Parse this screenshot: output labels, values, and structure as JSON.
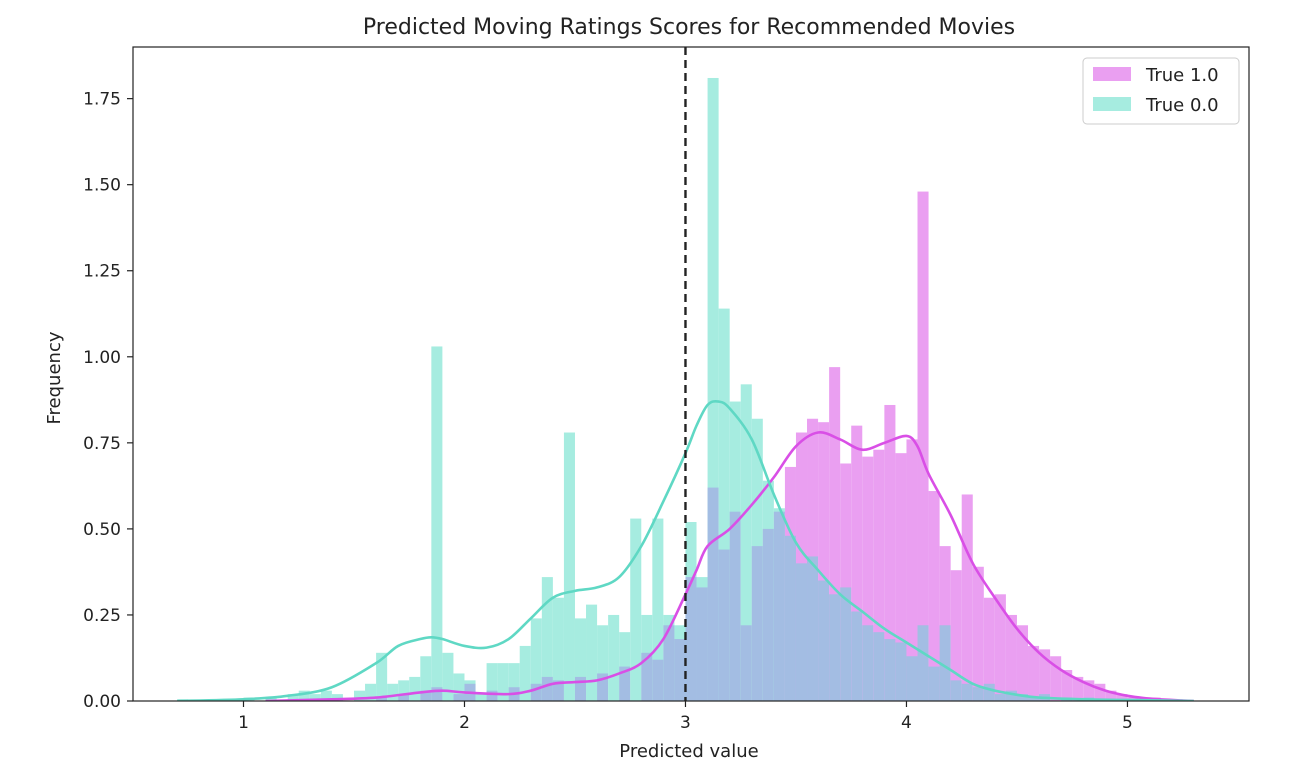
{
  "chart_data": {
    "type": "histogram",
    "title": "Predicted Moving Ratings Scores for Recommended Movies",
    "xlabel": "Predicted value",
    "ylabel": "Frequency",
    "xlim": [
      0.5,
      5.55
    ],
    "ylim": [
      0,
      1.9
    ],
    "xticks": [
      1,
      2,
      3,
      4,
      5
    ],
    "yticks": [
      0.0,
      0.25,
      0.5,
      0.75,
      1.0,
      1.25,
      1.5,
      1.75
    ],
    "ytick_labels": [
      "0.00",
      "0.25",
      "0.50",
      "0.75",
      "1.00",
      "1.25",
      "1.50",
      "1.75"
    ],
    "grid": false,
    "legend_position": "top-right",
    "vline": {
      "x": 3.0,
      "style": "dashed",
      "color": "#222222"
    },
    "bin_width": 0.05,
    "series": [
      {
        "name": "True 1.0",
        "color": "#ea9ff1",
        "kde_color": "#d94fe6",
        "bins": [
          [
            1.6,
            0.01
          ],
          [
            1.7,
            0.02
          ],
          [
            1.8,
            0.03
          ],
          [
            1.85,
            0.04
          ],
          [
            1.95,
            0.02
          ],
          [
            2.0,
            0.05
          ],
          [
            2.1,
            0.03
          ],
          [
            2.2,
            0.04
          ],
          [
            2.3,
            0.05
          ],
          [
            2.35,
            0.07
          ],
          [
            2.4,
            0.06
          ],
          [
            2.5,
            0.07
          ],
          [
            2.6,
            0.08
          ],
          [
            2.7,
            0.1
          ],
          [
            2.8,
            0.14
          ],
          [
            2.85,
            0.12
          ],
          [
            2.9,
            0.22
          ],
          [
            2.95,
            0.18
          ],
          [
            3.0,
            0.36
          ],
          [
            3.05,
            0.33
          ],
          [
            3.1,
            0.62
          ],
          [
            3.15,
            0.44
          ],
          [
            3.2,
            0.55
          ],
          [
            3.25,
            0.22
          ],
          [
            3.3,
            0.45
          ],
          [
            3.35,
            0.5
          ],
          [
            3.4,
            0.55
          ],
          [
            3.45,
            0.68
          ],
          [
            3.5,
            0.78
          ],
          [
            3.55,
            0.82
          ],
          [
            3.6,
            0.81
          ],
          [
            3.65,
            0.97
          ],
          [
            3.7,
            0.69
          ],
          [
            3.75,
            0.8
          ],
          [
            3.8,
            0.71
          ],
          [
            3.85,
            0.73
          ],
          [
            3.9,
            0.86
          ],
          [
            3.95,
            0.72
          ],
          [
            4.0,
            0.76
          ],
          [
            4.05,
            1.48
          ],
          [
            4.1,
            0.61
          ],
          [
            4.15,
            0.45
          ],
          [
            4.2,
            0.38
          ],
          [
            4.25,
            0.6
          ],
          [
            4.3,
            0.39
          ],
          [
            4.35,
            0.3
          ],
          [
            4.4,
            0.31
          ],
          [
            4.45,
            0.25
          ],
          [
            4.5,
            0.22
          ],
          [
            4.55,
            0.16
          ],
          [
            4.6,
            0.15
          ],
          [
            4.65,
            0.13
          ],
          [
            4.7,
            0.09
          ],
          [
            4.75,
            0.07
          ],
          [
            4.8,
            0.06
          ],
          [
            4.85,
            0.05
          ],
          [
            4.9,
            0.03
          ],
          [
            4.95,
            0.02
          ],
          [
            5.0,
            0.01
          ],
          [
            5.1,
            0.01
          ]
        ],
        "kde": [
          [
            1.1,
            0.0
          ],
          [
            1.4,
            0.005
          ],
          [
            1.6,
            0.01
          ],
          [
            1.8,
            0.025
          ],
          [
            1.9,
            0.03
          ],
          [
            2.0,
            0.025
          ],
          [
            2.2,
            0.02
          ],
          [
            2.3,
            0.03
          ],
          [
            2.4,
            0.05
          ],
          [
            2.5,
            0.055
          ],
          [
            2.6,
            0.06
          ],
          [
            2.7,
            0.08
          ],
          [
            2.8,
            0.11
          ],
          [
            2.9,
            0.18
          ],
          [
            3.0,
            0.31
          ],
          [
            3.05,
            0.38
          ],
          [
            3.1,
            0.45
          ],
          [
            3.2,
            0.5
          ],
          [
            3.3,
            0.57
          ],
          [
            3.4,
            0.65
          ],
          [
            3.5,
            0.74
          ],
          [
            3.6,
            0.78
          ],
          [
            3.7,
            0.76
          ],
          [
            3.8,
            0.73
          ],
          [
            3.9,
            0.75
          ],
          [
            4.0,
            0.77
          ],
          [
            4.05,
            0.74
          ],
          [
            4.1,
            0.66
          ],
          [
            4.2,
            0.54
          ],
          [
            4.3,
            0.4
          ],
          [
            4.4,
            0.3
          ],
          [
            4.5,
            0.21
          ],
          [
            4.6,
            0.14
          ],
          [
            4.7,
            0.09
          ],
          [
            4.8,
            0.055
          ],
          [
            4.9,
            0.03
          ],
          [
            5.0,
            0.015
          ],
          [
            5.1,
            0.007
          ],
          [
            5.2,
            0.003
          ],
          [
            5.3,
            0.0
          ]
        ]
      },
      {
        "name": "True 0.0",
        "color": "#a6ece0",
        "kde_color": "#5fd8c4",
        "bins": [
          [
            0.7,
            0.005
          ],
          [
            1.0,
            0.01
          ],
          [
            1.1,
            0.01
          ],
          [
            1.2,
            0.02
          ],
          [
            1.25,
            0.03
          ],
          [
            1.3,
            0.02
          ],
          [
            1.35,
            0.03
          ],
          [
            1.4,
            0.02
          ],
          [
            1.5,
            0.03
          ],
          [
            1.55,
            0.05
          ],
          [
            1.6,
            0.14
          ],
          [
            1.65,
            0.05
          ],
          [
            1.7,
            0.06
          ],
          [
            1.75,
            0.07
          ],
          [
            1.8,
            0.13
          ],
          [
            1.85,
            1.03
          ],
          [
            1.9,
            0.14
          ],
          [
            1.95,
            0.08
          ],
          [
            2.0,
            0.06
          ],
          [
            2.05,
            0.02
          ],
          [
            2.1,
            0.11
          ],
          [
            2.15,
            0.11
          ],
          [
            2.2,
            0.11
          ],
          [
            2.25,
            0.16
          ],
          [
            2.3,
            0.24
          ],
          [
            2.35,
            0.36
          ],
          [
            2.4,
            0.3
          ],
          [
            2.45,
            0.78
          ],
          [
            2.5,
            0.24
          ],
          [
            2.55,
            0.28
          ],
          [
            2.6,
            0.22
          ],
          [
            2.65,
            0.25
          ],
          [
            2.7,
            0.2
          ],
          [
            2.75,
            0.53
          ],
          [
            2.8,
            0.25
          ],
          [
            2.85,
            0.53
          ],
          [
            2.9,
            0.25
          ],
          [
            2.95,
            0.22
          ],
          [
            3.0,
            0.52
          ],
          [
            3.05,
            0.36
          ],
          [
            3.1,
            1.81
          ],
          [
            3.15,
            1.14
          ],
          [
            3.2,
            0.87
          ],
          [
            3.25,
            0.92
          ],
          [
            3.3,
            0.82
          ],
          [
            3.35,
            0.64
          ],
          [
            3.4,
            0.56
          ],
          [
            3.45,
            0.48
          ],
          [
            3.5,
            0.4
          ],
          [
            3.55,
            0.42
          ],
          [
            3.6,
            0.35
          ],
          [
            3.65,
            0.31
          ],
          [
            3.7,
            0.33
          ],
          [
            3.75,
            0.26
          ],
          [
            3.8,
            0.22
          ],
          [
            3.85,
            0.2
          ],
          [
            3.9,
            0.18
          ],
          [
            3.95,
            0.17
          ],
          [
            4.0,
            0.13
          ],
          [
            4.05,
            0.22
          ],
          [
            4.1,
            0.1
          ],
          [
            4.15,
            0.22
          ],
          [
            4.2,
            0.06
          ],
          [
            4.25,
            0.05
          ],
          [
            4.3,
            0.04
          ],
          [
            4.35,
            0.05
          ],
          [
            4.4,
            0.02
          ],
          [
            4.45,
            0.03
          ],
          [
            4.5,
            0.02
          ],
          [
            4.55,
            0.01
          ],
          [
            4.6,
            0.02
          ],
          [
            4.7,
            0.01
          ],
          [
            4.8,
            0.01
          ],
          [
            4.9,
            0.005
          ],
          [
            5.2,
            0.005
          ]
        ],
        "kde": [
          [
            0.7,
            0.0
          ],
          [
            1.0,
            0.005
          ],
          [
            1.2,
            0.015
          ],
          [
            1.4,
            0.04
          ],
          [
            1.6,
            0.11
          ],
          [
            1.7,
            0.16
          ],
          [
            1.8,
            0.18
          ],
          [
            1.85,
            0.185
          ],
          [
            1.9,
            0.18
          ],
          [
            2.0,
            0.16
          ],
          [
            2.1,
            0.155
          ],
          [
            2.2,
            0.18
          ],
          [
            2.3,
            0.24
          ],
          [
            2.4,
            0.3
          ],
          [
            2.5,
            0.32
          ],
          [
            2.6,
            0.33
          ],
          [
            2.7,
            0.36
          ],
          [
            2.8,
            0.45
          ],
          [
            2.9,
            0.58
          ],
          [
            3.0,
            0.72
          ],
          [
            3.05,
            0.8
          ],
          [
            3.1,
            0.86
          ],
          [
            3.15,
            0.87
          ],
          [
            3.2,
            0.85
          ],
          [
            3.3,
            0.76
          ],
          [
            3.4,
            0.6
          ],
          [
            3.5,
            0.46
          ],
          [
            3.6,
            0.38
          ],
          [
            3.7,
            0.31
          ],
          [
            3.8,
            0.26
          ],
          [
            3.9,
            0.21
          ],
          [
            4.0,
            0.17
          ],
          [
            4.1,
            0.13
          ],
          [
            4.2,
            0.09
          ],
          [
            4.3,
            0.05
          ],
          [
            4.4,
            0.03
          ],
          [
            4.5,
            0.018
          ],
          [
            4.6,
            0.01
          ],
          [
            4.8,
            0.005
          ],
          [
            5.0,
            0.003
          ],
          [
            5.3,
            0.0
          ]
        ]
      }
    ],
    "overlap_color": "#a3bde3"
  }
}
